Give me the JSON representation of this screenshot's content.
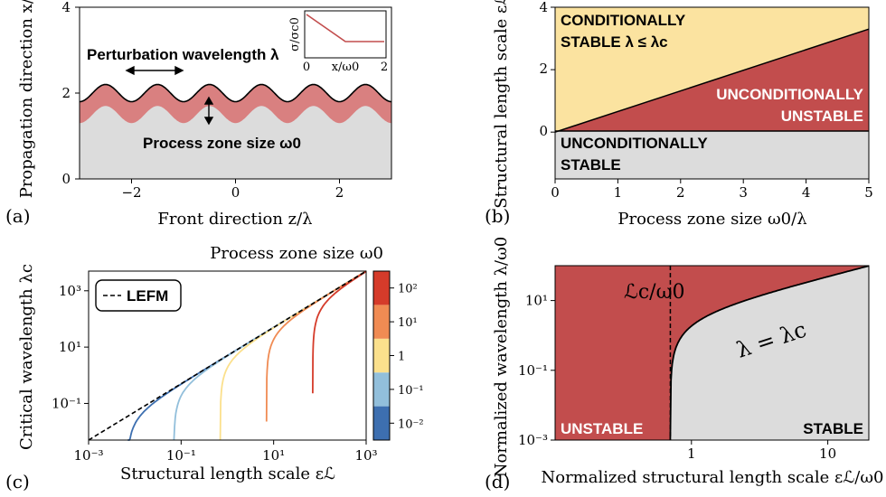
{
  "colors": {
    "red": "#c24d4d",
    "pink": "#d98080",
    "yellow": "#fbe3a0",
    "gray": "#dcdcdc",
    "cmap": [
      "#3d6fb0",
      "#92bfdb",
      "#fbe08c",
      "#f08b53",
      "#d53b2a"
    ]
  },
  "chart_data": [
    {
      "panel_label": "(a)",
      "type": "area",
      "xlabel": "Front direction z/λ",
      "ylabel": "Propagation direction x/λ",
      "xlim": [
        -3,
        3
      ],
      "ylim": [
        0,
        4
      ],
      "xticks": [
        "−2",
        "0",
        "2"
      ],
      "yticks": [
        "0",
        "2",
        "4"
      ],
      "front_profile": {
        "mean": 2.0,
        "amplitude": 0.2,
        "wavelength": 1.0
      },
      "process_zone_offset": 0.5,
      "annotations": [
        "Perturbation wavelength λ",
        "Process zone size ω0"
      ],
      "inset": {
        "xlabel": "x/ω0",
        "ylabel": "σ/σc0",
        "xticks": [
          "0",
          "2"
        ],
        "x": [
          0,
          1,
          2
        ],
        "y": [
          1,
          0,
          0
        ]
      }
    },
    {
      "panel_label": "(b)",
      "type": "area",
      "xlabel": "Process zone size ω0/λ",
      "ylabel": "Structural length scale εℒ/λ",
      "xlim": [
        0,
        5
      ],
      "ylim": [
        -1.5,
        4
      ],
      "xticks": [
        "0",
        "1",
        "2",
        "3",
        "4",
        "5"
      ],
      "yticks": [
        "0",
        "2",
        "4"
      ],
      "boundary": {
        "x": [
          0,
          5
        ],
        "y": [
          0,
          3.3
        ]
      },
      "regions": [
        {
          "name": "CONDITIONALLY STABLE λ ≤ λc",
          "line1": "CONDITIONALLY",
          "line2": "STABLE λ ≤ λc"
        },
        {
          "name": "UNCONDITIONALLY UNSTABLE",
          "line1": "UNCONDITIONALLY",
          "line2": "UNSTABLE"
        },
        {
          "name": "UNCONDITIONALLY STABLE",
          "line1": "UNCONDITIONALLY",
          "line2": "STABLE"
        }
      ]
    },
    {
      "panel_label": "(c)",
      "type": "line",
      "log_x": true,
      "log_y": true,
      "xlabel": "Structural length scale εℒ",
      "ylabel": "Critical wavelength λc",
      "xlim": [
        0.001,
        1000
      ],
      "ylim": [
        0.005,
        5000
      ],
      "xticks": [
        "10⁻³",
        "10⁻¹",
        "10¹",
        "10³"
      ],
      "yticks": [
        "10⁻¹",
        "10¹",
        "10³"
      ],
      "legend": "LEFM",
      "colorbar": {
        "title": "Process zone size ω0",
        "ticks": [
          "10⁻²",
          "10⁻¹",
          "1",
          "10¹",
          "10²"
        ],
        "values": [
          0.01,
          0.1,
          1,
          10,
          100
        ]
      },
      "series": [
        {
          "omega0": 0.01
        },
        {
          "omega0": 0.1
        },
        {
          "omega0": 1
        },
        {
          "omega0": 10
        },
        {
          "omega0": 100
        }
      ]
    },
    {
      "panel_label": "(d)",
      "type": "area",
      "log_x": true,
      "log_y": true,
      "xlabel": "Normalized structural length scale εℒ/ω0",
      "ylabel": "Normalized wavelength λ/ω0",
      "xlim": [
        0.1,
        20
      ],
      "ylim": [
        0.001,
        100
      ],
      "xticks": [
        "1",
        "10"
      ],
      "yticks": [
        "10⁻³",
        "10⁻¹",
        "10¹"
      ],
      "critical_x": 0.7,
      "annotations": [
        "ℒc/ω0",
        "λ = λc"
      ],
      "regions": [
        "UNSTABLE",
        "STABLE"
      ]
    }
  ]
}
